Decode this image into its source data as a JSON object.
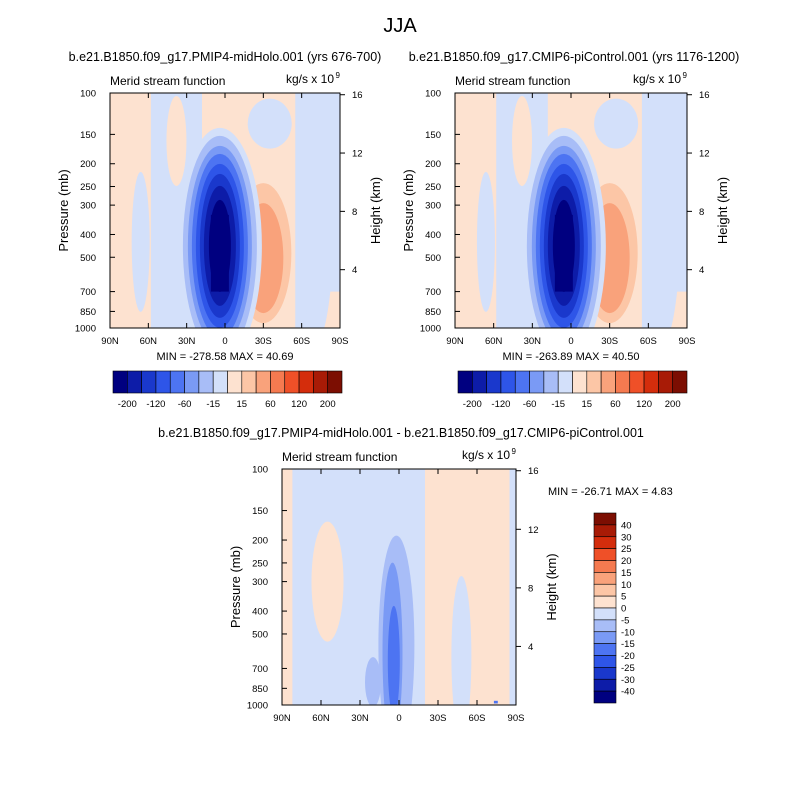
{
  "figure": {
    "main_title": "JJA",
    "diff_title": "b.e21.B1850.f09_g17.PMIP4-midHolo.001 - b.e21.B1850.f09_g17.CMIP6-piControl.001"
  },
  "chart_data": [
    {
      "type": "heatmap",
      "title": "b.e21.B1850.f09_g17.PMIP4-midHolo.001 (yrs 676-700)",
      "subtitle_left": "Merid stream function",
      "subtitle_right": "kg/s x 10",
      "units_exponent": "9",
      "xlabel": "",
      "ylabel": "Pressure (mb)",
      "y2label": "Height (km)",
      "xticks": [
        "90N",
        "60N",
        "30N",
        "0",
        "30S",
        "60S",
        "90S"
      ],
      "xlim": [
        90,
        -90
      ],
      "yticks": [
        100,
        150,
        200,
        250,
        300,
        400,
        500,
        700,
        850,
        1000
      ],
      "ylim": [
        1000,
        100
      ],
      "y_scale": "log",
      "height_ticks": [
        16,
        12,
        8,
        4
      ],
      "stats_text": "MIN = -278.58  MAX =  40.69",
      "min": -278.58,
      "max": 40.69,
      "levels_labels": [
        "-200",
        "-120",
        "-60",
        "-15",
        "15",
        "60",
        "120",
        "200"
      ],
      "colors": [
        "#000080",
        "#0d1ca8",
        "#1a38cc",
        "#2e55e8",
        "#4d74f2",
        "#7a9af5",
        "#a8bdf7",
        "#d3e0fa",
        "#fde2d0",
        "#fcc6a6",
        "#f9a27b",
        "#f57a50",
        "#ef5028",
        "#d42d0c",
        "#a81b06",
        "#7c0e02"
      ],
      "legend": "bottom",
      "grid": false
    },
    {
      "type": "heatmap",
      "title": "b.e21.B1850.f09_g17.CMIP6-piControl.001 (yrs 1176-1200)",
      "subtitle_left": "Merid stream function",
      "subtitle_right": "kg/s x 10",
      "units_exponent": "9",
      "xlabel": "",
      "ylabel": "Pressure (mb)",
      "y2label": "Height (km)",
      "xticks": [
        "90N",
        "60N",
        "30N",
        "0",
        "30S",
        "60S",
        "90S"
      ],
      "xlim": [
        90,
        -90
      ],
      "yticks": [
        100,
        150,
        200,
        250,
        300,
        400,
        500,
        700,
        850,
        1000
      ],
      "ylim": [
        1000,
        100
      ],
      "y_scale": "log",
      "height_ticks": [
        16,
        12,
        8,
        4
      ],
      "stats_text": "MIN = -263.89  MAX =  40.50",
      "min": -263.89,
      "max": 40.5,
      "levels_labels": [
        "-200",
        "-120",
        "-60",
        "-15",
        "15",
        "60",
        "120",
        "200"
      ],
      "colors": [
        "#000080",
        "#0d1ca8",
        "#1a38cc",
        "#2e55e8",
        "#4d74f2",
        "#7a9af5",
        "#a8bdf7",
        "#d3e0fa",
        "#fde2d0",
        "#fcc6a6",
        "#f9a27b",
        "#f57a50",
        "#ef5028",
        "#d42d0c",
        "#a81b06",
        "#7c0e02"
      ],
      "legend": "bottom",
      "grid": false
    },
    {
      "type": "heatmap",
      "title": "",
      "subtitle_left": "Merid stream function",
      "subtitle_right": "kg/s x 10",
      "units_exponent": "9",
      "xlabel": "",
      "ylabel": "Pressure (mb)",
      "y2label": "Height (km)",
      "xticks": [
        "90N",
        "60N",
        "30N",
        "0",
        "30S",
        "60S",
        "90S"
      ],
      "xlim": [
        90,
        -90
      ],
      "yticks": [
        100,
        150,
        200,
        250,
        300,
        400,
        500,
        700,
        850,
        1000
      ],
      "ylim": [
        1000,
        100
      ],
      "y_scale": "log",
      "height_ticks": [
        16,
        12,
        8,
        4
      ],
      "stats_text": "MIN = -26.71  MAX =   4.83",
      "min": -26.71,
      "max": 4.83,
      "levels_labels": [
        "40",
        "30",
        "25",
        "20",
        "15",
        "10",
        "5",
        "0",
        "-5",
        "-10",
        "-15",
        "-20",
        "-25",
        "-30",
        "-40"
      ],
      "colors": [
        "#7c0e02",
        "#a81b06",
        "#d42d0c",
        "#ef5028",
        "#f57a50",
        "#f9a27b",
        "#fcc6a6",
        "#fde2d0",
        "#d3e0fa",
        "#a8bdf7",
        "#7a9af5",
        "#4d74f2",
        "#2e55e8",
        "#1a38cc",
        "#0d1ca8",
        "#000080"
      ],
      "legend": "right",
      "grid": false
    }
  ]
}
